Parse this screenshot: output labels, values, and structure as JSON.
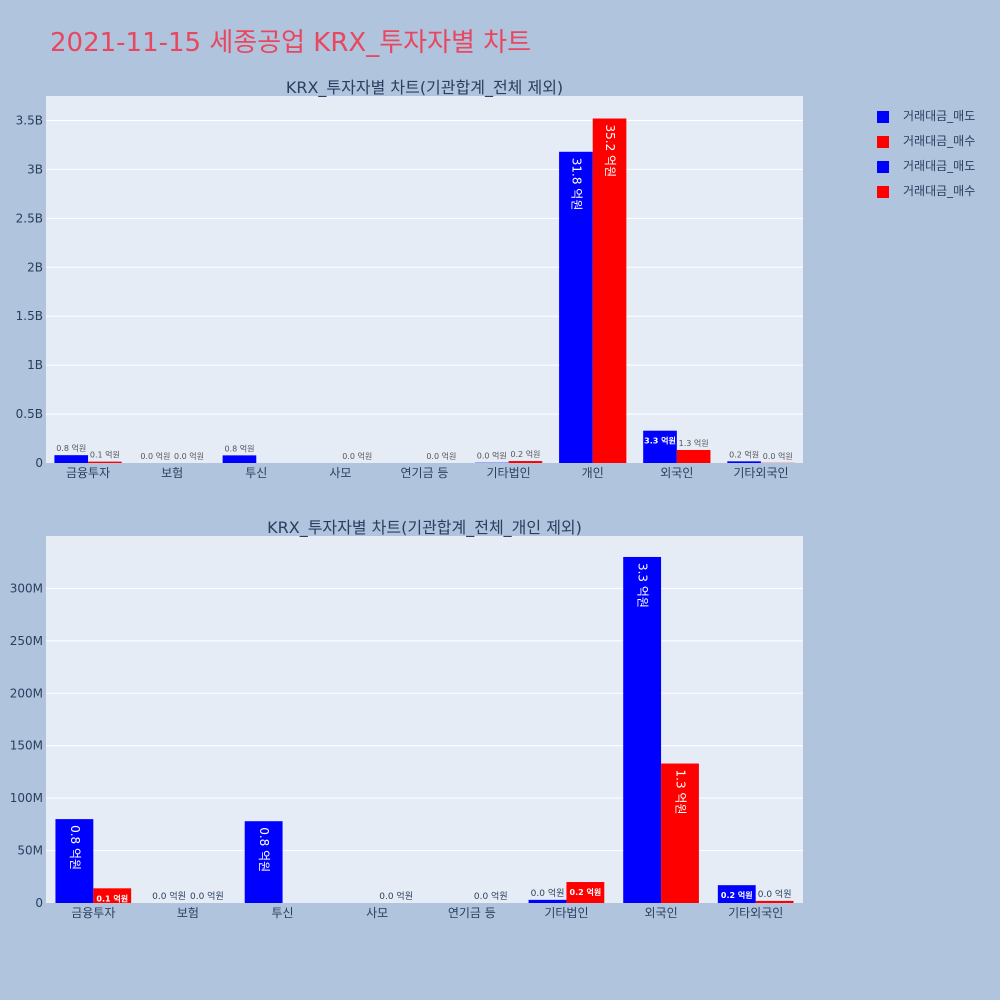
{
  "page_title": "2021-11-15 세종공업 KRX_투자자별 차트",
  "colors": {
    "sell": "#0000ff",
    "buy": "#ff0000",
    "plot_bg": "#e5ecf6",
    "page_bg": "#b0c4de",
    "title": "#e8475f"
  },
  "legend": [
    {
      "label": "거래대금_매도",
      "color": "#0000ff"
    },
    {
      "label": "거래대금_매수",
      "color": "#ff0000"
    },
    {
      "label": "거래대금_매도",
      "color": "#0000ff"
    },
    {
      "label": "거래대금_매수",
      "color": "#ff0000"
    }
  ],
  "chart_data": [
    {
      "type": "bar",
      "title": "KRX_투자자별 차트(기관합계_전체 제외)",
      "categories": [
        "금융투자",
        "보험",
        "투신",
        "사모",
        "연기금 등",
        "기타법인",
        "개인",
        "외국인",
        "기타외국인"
      ],
      "ylim": [
        0,
        3750000000
      ],
      "yticks": [
        0,
        500000000,
        1000000000,
        1500000000,
        2000000000,
        2500000000,
        3000000000,
        3500000000
      ],
      "ytick_labels": [
        "0",
        "0.5B",
        "1B",
        "1.5B",
        "2B",
        "2.5B",
        "3B",
        "3.5B"
      ],
      "grid": true,
      "series": [
        {
          "name": "거래대금_매도",
          "color": "#0000ff",
          "values": [
            80000000,
            0,
            78000000,
            null,
            null,
            3000000,
            3180000000,
            330000000,
            17000000
          ],
          "labels": [
            "0.8 억원",
            "0.0 억원",
            "0.8 억원",
            null,
            null,
            "0.0 억원",
            "31.8 억원",
            "3.3 억원",
            "0.2 억원"
          ]
        },
        {
          "name": "거래대금_매수",
          "color": "#ff0000",
          "values": [
            14000000,
            0,
            null,
            0,
            0,
            20000000,
            3520000000,
            133000000,
            2000000
          ],
          "labels": [
            "0.1 억원",
            "0.0 억원",
            null,
            "0.0 억원",
            "0.0 억원",
            "0.2 억원",
            "35.2 억원",
            "1.3 억원",
            "0.0 억원"
          ]
        }
      ]
    },
    {
      "type": "bar",
      "title": "KRX_투자자별 차트(기관합계_전체_개인 제외)",
      "categories": [
        "금융투자",
        "보험",
        "투신",
        "사모",
        "연기금 등",
        "기타법인",
        "외국인",
        "기타외국인"
      ],
      "ylim": [
        0,
        350000000
      ],
      "yticks": [
        0,
        50000000,
        100000000,
        150000000,
        200000000,
        250000000,
        300000000
      ],
      "ytick_labels": [
        "0",
        "50M",
        "100M",
        "150M",
        "200M",
        "250M",
        "300M"
      ],
      "grid": true,
      "series": [
        {
          "name": "거래대금_매도",
          "color": "#0000ff",
          "values": [
            80000000,
            0,
            78000000,
            null,
            null,
            3000000,
            330000000,
            17000000
          ],
          "labels": [
            "0.8 억원",
            "0.0 억원",
            "0.8 억원",
            null,
            null,
            "0.0 억원",
            "3.3 억원",
            "0.2 억원"
          ]
        },
        {
          "name": "거래대금_매수",
          "color": "#ff0000",
          "values": [
            14000000,
            0,
            null,
            0,
            0,
            20000000,
            133000000,
            2000000
          ],
          "labels": [
            "0.1 억원",
            "0.0 억원",
            null,
            "0.0 억원",
            "0.0 억원",
            "0.2 억원",
            "1.3 억원",
            "0.0 억원"
          ]
        }
      ]
    }
  ]
}
